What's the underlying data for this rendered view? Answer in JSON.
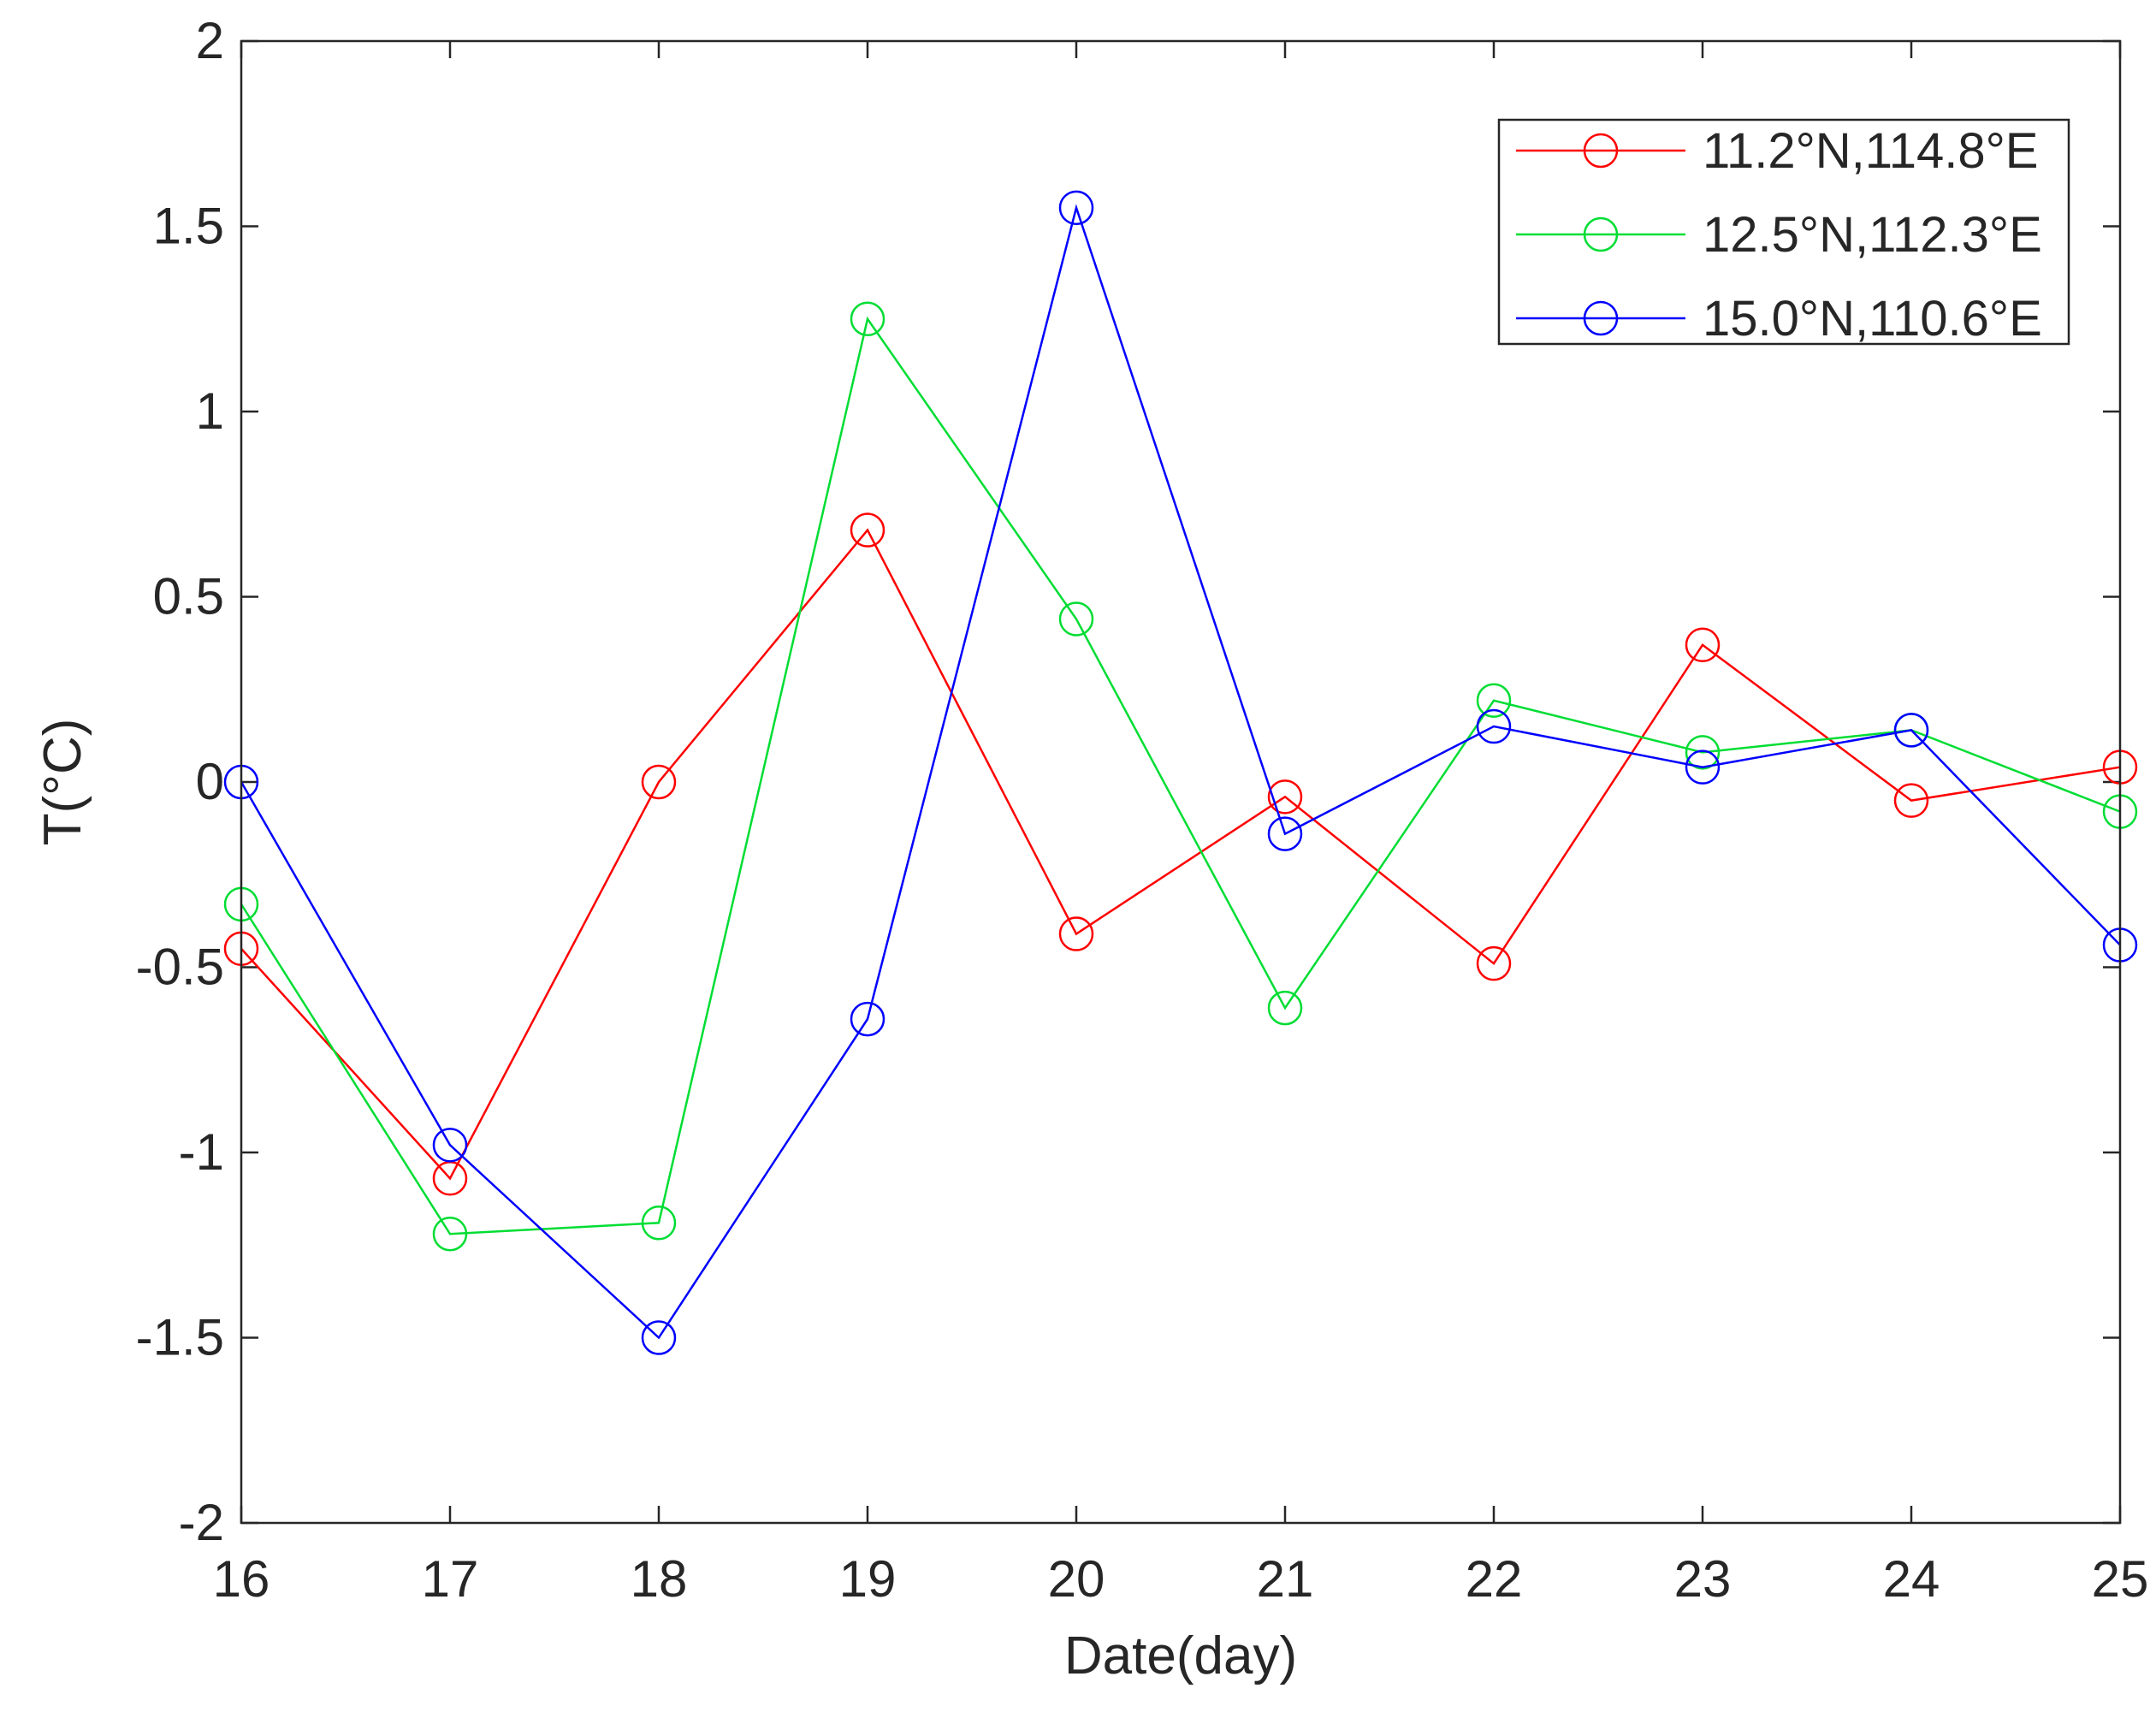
{
  "chart_data": {
    "type": "line",
    "title": "",
    "xlabel": "Date(day)",
    "ylabel": "T(°C)",
    "xlim": [
      16,
      25
    ],
    "ylim": [
      -2,
      2
    ],
    "x": [
      16,
      17,
      18,
      19,
      20,
      21,
      22,
      23,
      24,
      25
    ],
    "xticks": [
      "16",
      "17",
      "18",
      "19",
      "20",
      "21",
      "22",
      "23",
      "24",
      "25"
    ],
    "yticks": [
      -2,
      -1.5,
      -1,
      -0.5,
      0,
      0.5,
      1,
      1.5,
      2
    ],
    "ytick_labels": [
      "-2",
      "-1.5",
      "-1",
      "-0.5",
      "0",
      "0.5",
      "1",
      "1.5",
      "2"
    ],
    "grid": false,
    "legend_position": "top-right",
    "marker": "circle",
    "series": [
      {
        "name": "11.2°N,114.8°E",
        "color": "#ff0000",
        "values": [
          -0.45,
          -1.07,
          0.0,
          0.68,
          -0.41,
          -0.04,
          -0.49,
          0.37,
          -0.05,
          0.04
        ]
      },
      {
        "name": "12.5°N,112.3°E",
        "color": "#00dd33",
        "values": [
          -0.33,
          -1.22,
          -1.19,
          1.25,
          0.44,
          -0.61,
          0.22,
          0.08,
          0.14,
          -0.08
        ]
      },
      {
        "name": "15.0°N,110.6°E",
        "color": "#0000ff",
        "values": [
          0.0,
          -0.98,
          -1.5,
          -0.64,
          1.55,
          -0.14,
          0.15,
          0.04,
          0.14,
          -0.44
        ]
      }
    ]
  }
}
